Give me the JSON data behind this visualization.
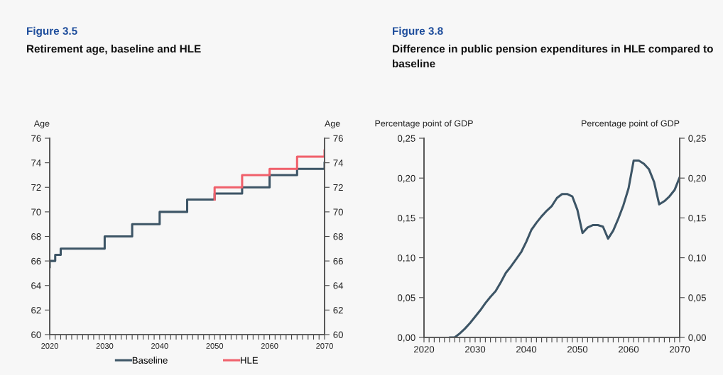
{
  "chart_data": [
    {
      "type": "step",
      "title": "Figure 3.5",
      "subtitle": "Retirement age, baseline and HLE",
      "ylabel": "Age",
      "y2label": "Age",
      "series": [
        {
          "name": "Baseline",
          "color": "#3d5566",
          "x": [
            2020,
            2020,
            2021,
            2022,
            2030,
            2035,
            2040,
            2045,
            2050,
            2055,
            2060,
            2065,
            2070,
            2070
          ],
          "values": [
            65.5,
            66,
            66,
            66.5,
            67,
            68,
            69,
            70,
            71,
            71.5,
            72,
            73,
            73.5,
            74
          ]
        },
        {
          "name": "HLE",
          "color": "#f0606b",
          "x": [
            2050,
            2050,
            2055,
            2060,
            2065,
            2070,
            2070
          ],
          "values": [
            71,
            72,
            72,
            73,
            73.5,
            74.5,
            75
          ]
        }
      ],
      "xlim": [
        2020,
        2070
      ],
      "xticks": [
        2020,
        {
          "value": 2021,
          "label": null
        },
        {
          "value": 2022,
          "label": null
        },
        {
          "value": 2023,
          "label": null
        },
        {
          "value": 2024,
          "label": null
        },
        {
          "value": 2025,
          "label": null
        },
        {
          "value": 2026,
          "label": null
        },
        {
          "value": 2027,
          "label": null
        },
        {
          "value": 2028,
          "label": null
        },
        {
          "value": 2029,
          "label": null
        },
        2030,
        {
          "value": 2031,
          "label": null
        },
        {
          "value": 2032,
          "label": null
        },
        {
          "value": 2033,
          "label": null
        },
        {
          "value": 2034,
          "label": null
        },
        {
          "value": 2035,
          "label": null
        },
        {
          "value": 2036,
          "label": null
        },
        {
          "value": 2037,
          "label": null
        },
        {
          "value": 2038,
          "label": null
        },
        {
          "value": 2039,
          "label": null
        },
        2040,
        {
          "value": 2041,
          "label": null
        },
        {
          "value": 2042,
          "label": null
        },
        {
          "value": 2043,
          "label": null
        },
        {
          "value": 2044,
          "label": null
        },
        {
          "value": 2045,
          "label": null
        },
        {
          "value": 2046,
          "label": null
        },
        {
          "value": 2047,
          "label": null
        },
        {
          "value": 2048,
          "label": null
        },
        {
          "value": 2049,
          "label": null
        },
        2050,
        {
          "value": 2051,
          "label": null
        },
        {
          "value": 2052,
          "label": null
        },
        {
          "value": 2053,
          "label": null
        },
        {
          "value": 2054,
          "label": null
        },
        {
          "value": 2055,
          "label": null
        },
        {
          "value": 2056,
          "label": null
        },
        {
          "value": 2057,
          "label": null
        },
        {
          "value": 2058,
          "label": null
        },
        {
          "value": 2059,
          "label": null
        },
        2060,
        {
          "value": 2061,
          "label": null
        },
        {
          "value": 2062,
          "label": null
        },
        {
          "value": 2063,
          "label": null
        },
        {
          "value": 2064,
          "label": null
        },
        {
          "value": 2065,
          "label": null
        },
        {
          "value": 2066,
          "label": null
        },
        {
          "value": 2067,
          "label": null
        },
        {
          "value": 2068,
          "label": null
        },
        {
          "value": 2069,
          "label": null
        },
        2070
      ],
      "ylim": [
        60,
        76
      ],
      "yticks": [
        60,
        62,
        64,
        66,
        68,
        70,
        72,
        74,
        76
      ],
      "y2lim": [
        60,
        76
      ],
      "y2ticks": [
        60,
        62,
        64,
        66,
        68,
        70,
        72,
        74,
        76
      ],
      "legend": "bottom"
    },
    {
      "type": "line",
      "title": "Figure 3.8",
      "subtitle": "Difference in public pension expenditures in HLE compared to baseline",
      "ylabel": "Percentage point of GDP",
      "y2label": "Percentage point of GDP",
      "series": [
        {
          "color": "#3d5566",
          "x": [
            2025,
            2026,
            2027,
            2028,
            2029,
            2030,
            2031,
            2032,
            2033,
            2034,
            2035,
            2036,
            2037,
            2038,
            2039,
            2040,
            2041,
            2042,
            2043,
            2044,
            2045,
            2046,
            2047,
            2048,
            2049,
            2050,
            2051,
            2052,
            2053,
            2054,
            2055,
            2056,
            2057,
            2058,
            2059,
            2060,
            2061,
            2062,
            2063,
            2064,
            2065,
            2066,
            2067,
            2068,
            2069,
            2070
          ],
          "values": [
            0,
            0,
            0.005,
            0.011,
            0.018,
            0.026,
            0.034,
            0.043,
            0.051,
            0.058,
            0.069,
            0.081,
            0.089,
            0.098,
            0.107,
            0.12,
            0.135,
            0.144,
            0.152,
            0.159,
            0.165,
            0.175,
            0.18,
            0.18,
            0.177,
            0.16,
            0.131,
            0.138,
            0.141,
            0.141,
            0.139,
            0.124,
            0.134,
            0.149,
            0.166,
            0.187,
            0.222,
            0.222,
            0.218,
            0.211,
            0.195,
            0.167,
            0.171,
            0.177,
            0.185,
            0.201
          ]
        }
      ],
      "xlim": [
        2020,
        2070
      ],
      "xticks": [
        2020,
        {
          "value": 2021,
          "label": null
        },
        {
          "value": 2022,
          "label": null
        },
        {
          "value": 2023,
          "label": null
        },
        {
          "value": 2024,
          "label": null
        },
        {
          "value": 2025,
          "label": null
        },
        {
          "value": 2026,
          "label": null
        },
        {
          "value": 2027,
          "label": null
        },
        {
          "value": 2028,
          "label": null
        },
        {
          "value": 2029,
          "label": null
        },
        2030,
        {
          "value": 2031,
          "label": null
        },
        {
          "value": 2032,
          "label": null
        },
        {
          "value": 2033,
          "label": null
        },
        {
          "value": 2034,
          "label": null
        },
        {
          "value": 2035,
          "label": null
        },
        {
          "value": 2036,
          "label": null
        },
        {
          "value": 2037,
          "label": null
        },
        {
          "value": 2038,
          "label": null
        },
        {
          "value": 2039,
          "label": null
        },
        2040,
        {
          "value": 2041,
          "label": null
        },
        {
          "value": 2042,
          "label": null
        },
        {
          "value": 2043,
          "label": null
        },
        {
          "value": 2044,
          "label": null
        },
        {
          "value": 2045,
          "label": null
        },
        {
          "value": 2046,
          "label": null
        },
        {
          "value": 2047,
          "label": null
        },
        {
          "value": 2048,
          "label": null
        },
        {
          "value": 2049,
          "label": null
        },
        2050,
        {
          "value": 2051,
          "label": null
        },
        {
          "value": 2052,
          "label": null
        },
        {
          "value": 2053,
          "label": null
        },
        {
          "value": 2054,
          "label": null
        },
        {
          "value": 2055,
          "label": null
        },
        {
          "value": 2056,
          "label": null
        },
        {
          "value": 2057,
          "label": null
        },
        {
          "value": 2058,
          "label": null
        },
        {
          "value": 2059,
          "label": null
        },
        2060,
        {
          "value": 2061,
          "label": null
        },
        {
          "value": 2062,
          "label": null
        },
        {
          "value": 2063,
          "label": null
        },
        {
          "value": 2064,
          "label": null
        },
        {
          "value": 2065,
          "label": null
        },
        {
          "value": 2066,
          "label": null
        },
        {
          "value": 2067,
          "label": null
        },
        {
          "value": 2068,
          "label": null
        },
        {
          "value": 2069,
          "label": null
        },
        2070
      ],
      "ylim": [
        0,
        0.25
      ],
      "yticks": [
        {
          "value": 0,
          "label": "0,00"
        },
        {
          "value": 0.05,
          "label": "0,05"
        },
        {
          "value": 0.1,
          "label": "0,10"
        },
        {
          "value": 0.15,
          "label": "0,15"
        },
        {
          "value": 0.2,
          "label": "0,20"
        },
        {
          "value": 0.25,
          "label": "0,25"
        }
      ],
      "y2lim": [
        0,
        0.25
      ],
      "y2ticks": [
        {
          "value": 0,
          "label": "0,00"
        },
        {
          "value": 0.05,
          "label": "0,05"
        },
        {
          "value": 0.1,
          "label": "0,10"
        },
        {
          "value": 0.15,
          "label": "0,15"
        },
        {
          "value": 0.2,
          "label": "0,20"
        },
        {
          "value": 0.25,
          "label": "0,25"
        }
      ]
    }
  ]
}
